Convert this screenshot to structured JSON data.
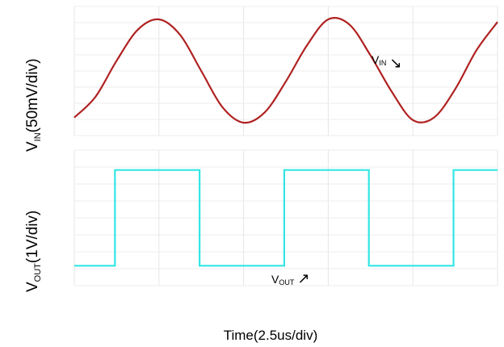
{
  "chart_data": [
    {
      "type": "line",
      "title": "",
      "ylabel_main": "V",
      "ylabel_sub": "IN",
      "ylabel_rest": "(50mV/div)",
      "annotation": {
        "main": "V",
        "sub": "IN",
        "arrow": "↘"
      },
      "series": [
        {
          "name": "VIN",
          "color": "#b02222",
          "x": [
            0,
            1.25,
            2.5,
            3.75,
            5,
            6.25,
            7.5,
            8.75,
            10,
            11.25,
            12.5,
            13.75,
            15,
            16.25,
            17.5,
            18.75,
            20,
            21.25,
            22.5,
            23.75,
            25
          ],
          "y": [
            -90,
            -50,
            20,
            80,
            100,
            70,
            0,
            -70,
            -100,
            -80,
            -20,
            50,
            100,
            90,
            30,
            -40,
            -95,
            -90,
            -35,
            40,
            95
          ]
        }
      ],
      "xlim": [
        0,
        25
      ],
      "ylim": [
        -125,
        125
      ]
    },
    {
      "type": "line",
      "title": "",
      "ylabel_main": "V",
      "ylabel_sub": "OUT",
      "ylabel_rest": "(1V/div)",
      "xlabel": "Time(2.5us/div)",
      "annotation": {
        "main": "V",
        "sub": "OUT",
        "arrow": "↗"
      },
      "series": [
        {
          "name": "VOUT",
          "color": "#33e5e5",
          "x": [
            0,
            2.4,
            2.4,
            7.4,
            7.4,
            12.4,
            12.4,
            17.4,
            17.4,
            22.4,
            22.4,
            25
          ],
          "y": [
            0,
            0,
            2.4,
            2.4,
            0,
            0,
            2.4,
            2.4,
            0,
            0,
            2.4,
            2.4
          ]
        }
      ],
      "xlim": [
        0,
        25
      ],
      "ylim": [
        -0.5,
        2.9
      ]
    }
  ]
}
